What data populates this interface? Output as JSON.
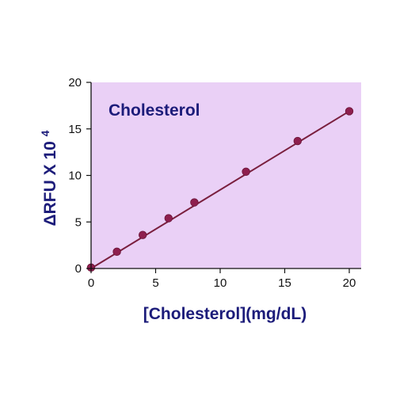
{
  "chart_data": {
    "type": "scatter",
    "title": "Cholesterol",
    "xlabel": "[Cholesterol](mg/dL)",
    "ylabel": "ΔRFU X 10",
    "ylabel_superscript": "4",
    "xlim": [
      0,
      21
    ],
    "ylim": [
      0,
      20
    ],
    "xticks": [
      "0",
      "5",
      "10",
      "15",
      "20"
    ],
    "yticks": [
      "0",
      "5",
      "10",
      "15",
      "20"
    ],
    "grid": false,
    "legend": "none",
    "series": [
      {
        "x": [
          0,
          2,
          4,
          6,
          8,
          12,
          16,
          20
        ],
        "y": [
          0.1,
          1.8,
          3.6,
          5.4,
          7.1,
          10.4,
          13.7,
          16.9
        ]
      }
    ],
    "fit_line": {
      "x": [
        0,
        20
      ],
      "y": [
        0.0,
        16.9
      ]
    },
    "colors": {
      "plot_background": "#EAD0F6",
      "marker": "#8E1F4E",
      "line": "#7A1F3E",
      "text": "#1C1C7A"
    }
  }
}
